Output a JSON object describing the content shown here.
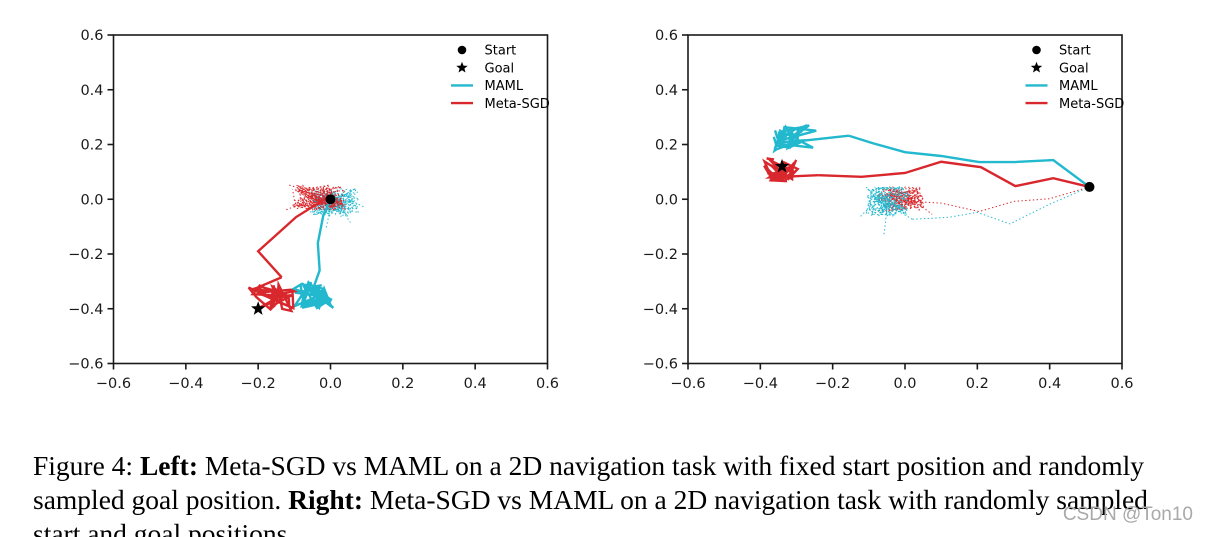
{
  "figure": {
    "caption": {
      "lines": [
        {
          "segments": [
            {
              "text": "Figure 4: ",
              "bold": false
            },
            {
              "text": "Left:",
              "bold": true
            },
            {
              "text": " Meta-SGD vs MAML on a 2D navigation task with fixed start position and randomly",
              "bold": false
            }
          ]
        },
        {
          "segments": [
            {
              "text": "sampled goal position. ",
              "bold": false
            },
            {
              "text": "Right:",
              "bold": true
            },
            {
              "text": " Meta-SGD vs MAML on a 2D navigation task with randomly sampled",
              "bold": false
            }
          ]
        },
        {
          "segments": [
            {
              "text": "start and goal positions.",
              "bold": false
            }
          ]
        }
      ]
    },
    "watermark": "CSDN @Ton10"
  },
  "colors": {
    "maml": "#22b8ce",
    "meta_sgd": "#d8282d",
    "marker": "#000000",
    "axis": "#1a1a1a",
    "watermark": "#a9a9a9"
  },
  "legend": {
    "items": [
      {
        "label": "Start",
        "marker": "dot",
        "color": "marker"
      },
      {
        "label": "Goal",
        "marker": "star",
        "color": "marker"
      },
      {
        "label": "MAML",
        "marker": "line",
        "color": "maml"
      },
      {
        "label": "Meta-SGD",
        "marker": "line",
        "color": "meta_sgd"
      }
    ]
  },
  "chart_data": [
    {
      "id": "left",
      "type": "line",
      "title": "",
      "xlabel": "",
      "ylabel": "",
      "xlim": [
        -0.6,
        0.6
      ],
      "ylim": [
        -0.6,
        0.6
      ],
      "xticks": [
        -0.6,
        -0.4,
        -0.2,
        0.0,
        0.2,
        0.4,
        0.6
      ],
      "yticks": [
        -0.6,
        -0.4,
        -0.2,
        0.0,
        0.2,
        0.4,
        0.6
      ],
      "grid": false,
      "legend_position": "upper right",
      "start": [
        0.0,
        0.0
      ],
      "goal": [
        -0.2,
        -0.4
      ],
      "series": [
        {
          "name": "maml-pre-adaptation",
          "color": "maml",
          "style": "dotted",
          "points": [],
          "cluster": {
            "center": [
              0.012,
              -0.012
            ],
            "amp": [
              0.068,
              0.052
            ],
            "strands": 8,
            "per": 15,
            "seed": 11
          }
        },
        {
          "name": "meta-sgd-pre-adaptation",
          "color": "meta_sgd",
          "style": "dotted",
          "points": [],
          "cluster": {
            "center": [
              -0.032,
              0.006
            ],
            "amp": [
              0.075,
              0.046
            ],
            "strands": 8,
            "per": 15,
            "seed": 23
          }
        },
        {
          "name": "maml-trajectory",
          "color": "maml",
          "style": "solid",
          "points": [
            [
              0.0,
              0.0
            ],
            [
              -0.02,
              -0.06
            ],
            [
              -0.035,
              -0.16
            ],
            [
              -0.03,
              -0.26
            ],
            [
              -0.045,
              -0.315
            ]
          ],
          "cluster": {
            "center": [
              -0.05,
              -0.35
            ],
            "amp": [
              0.058,
              0.048
            ],
            "strands": 2,
            "per": 19,
            "seed": 5
          }
        },
        {
          "name": "meta-sgd-trajectory",
          "color": "meta_sgd",
          "style": "solid",
          "points": [
            [
              -0.01,
              0.005
            ],
            [
              -0.095,
              -0.065
            ],
            [
              -0.2,
              -0.19
            ],
            [
              -0.135,
              -0.285
            ]
          ],
          "cluster": {
            "center": [
              -0.165,
              -0.36
            ],
            "amp": [
              0.068,
              0.05
            ],
            "strands": 2,
            "per": 19,
            "seed": 9
          }
        }
      ],
      "extra_paths": [
        {
          "color": "maml",
          "style": "dotted",
          "points": [
            [
              0.0,
              -0.03
            ],
            [
              -0.012,
              -0.105
            ]
          ]
        },
        {
          "color": "maml",
          "style": "dotted",
          "points": [
            [
              0.03,
              -0.035
            ],
            [
              0.055,
              -0.085
            ]
          ]
        },
        {
          "color": "maml",
          "style": "dotted",
          "points": [
            [
              0.05,
              0.0
            ],
            [
              0.095,
              -0.03
            ]
          ]
        },
        {
          "color": "meta_sgd",
          "style": "dotted",
          "points": [
            [
              -0.06,
              0.03
            ],
            [
              -0.115,
              0.052
            ]
          ]
        },
        {
          "color": "meta_sgd",
          "style": "dotted",
          "points": [
            [
              -0.07,
              -0.01
            ],
            [
              -0.125,
              -0.04
            ]
          ]
        }
      ]
    },
    {
      "id": "right",
      "type": "line",
      "title": "",
      "xlabel": "",
      "ylabel": "",
      "xlim": [
        -0.6,
        0.6
      ],
      "ylim": [
        -0.6,
        0.6
      ],
      "xticks": [
        -0.6,
        -0.4,
        -0.2,
        0.0,
        0.2,
        0.4,
        0.6
      ],
      "yticks": [
        -0.6,
        -0.4,
        -0.2,
        0.0,
        0.2,
        0.4,
        0.6
      ],
      "grid": false,
      "legend_position": "upper right",
      "start": [
        0.51,
        0.045
      ],
      "goal": [
        -0.34,
        0.12
      ],
      "series": [
        {
          "name": "meta-sgd-pre-adaptation",
          "color": "meta_sgd",
          "style": "dotted",
          "points": [
            [
              0.51,
              0.045
            ],
            [
              0.4,
              0.002
            ],
            [
              0.3,
              -0.008
            ],
            [
              0.205,
              -0.045
            ],
            [
              0.1,
              -0.014
            ],
            [
              0.045,
              -0.01
            ]
          ],
          "cluster": {
            "center": [
              -0.012,
              0.002
            ],
            "amp": [
              0.066,
              0.046
            ],
            "strands": 7,
            "per": 15,
            "seed": 41
          }
        },
        {
          "name": "maml-pre-adaptation",
          "color": "maml",
          "style": "dotted",
          "points": [
            [
              0.51,
              0.045
            ],
            [
              0.4,
              -0.018
            ],
            [
              0.29,
              -0.09
            ],
            [
              0.2,
              -0.048
            ],
            [
              0.12,
              -0.066
            ],
            [
              0.02,
              -0.073
            ]
          ],
          "cluster": {
            "center": [
              -0.048,
              -0.01
            ],
            "amp": [
              0.062,
              0.056
            ],
            "strands": 7,
            "per": 15,
            "seed": 57
          }
        },
        {
          "name": "maml-trajectory",
          "color": "maml",
          "style": "solid",
          "points": [
            [
              0.51,
              0.045
            ],
            [
              0.41,
              0.143
            ],
            [
              0.305,
              0.136
            ],
            [
              0.205,
              0.136
            ],
            [
              0.1,
              0.158
            ],
            [
              0.0,
              0.172
            ],
            [
              -0.09,
              0.205
            ],
            [
              -0.155,
              0.232
            ]
          ],
          "cluster": {
            "center": [
              -0.305,
              0.225
            ],
            "amp": [
              0.06,
              0.048
            ],
            "strands": 2,
            "per": 19,
            "seed": 13
          }
        },
        {
          "name": "meta-sgd-trajectory",
          "color": "meta_sgd",
          "style": "solid",
          "points": [
            [
              0.51,
              0.045
            ],
            [
              0.41,
              0.077
            ],
            [
              0.305,
              0.048
            ],
            [
              0.21,
              0.117
            ],
            [
              0.1,
              0.137
            ],
            [
              0.0,
              0.096
            ],
            [
              -0.12,
              0.082
            ],
            [
              -0.24,
              0.088
            ]
          ],
          "cluster": {
            "center": [
              -0.345,
              0.112
            ],
            "amp": [
              0.052,
              0.046
            ],
            "strands": 2,
            "per": 18,
            "seed": 29
          }
        }
      ],
      "extra_paths": [
        {
          "color": "maml",
          "style": "dotted",
          "points": [
            [
              -0.05,
              -0.04
            ],
            [
              -0.058,
              -0.128
            ]
          ]
        },
        {
          "color": "maml",
          "style": "dotted",
          "points": [
            [
              -0.09,
              -0.02
            ],
            [
              -0.125,
              -0.065
            ]
          ]
        },
        {
          "color": "meta_sgd",
          "style": "dotted",
          "points": [
            [
              0.04,
              -0.02
            ],
            [
              0.075,
              -0.055
            ]
          ]
        }
      ]
    }
  ]
}
